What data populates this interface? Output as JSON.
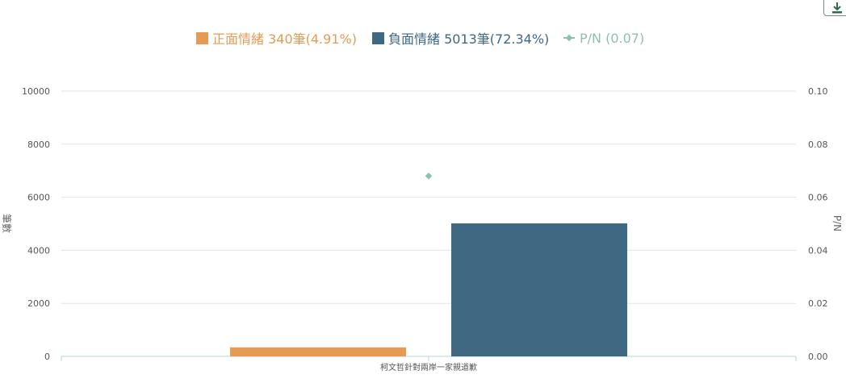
{
  "toolbar": {
    "download_icon": "download-icon"
  },
  "legend": [
    {
      "label": "正面情緒 340筆(4.91%)",
      "color": "#E59B55",
      "kind": "bar"
    },
    {
      "label": "負面情緒 5013筆(72.34%)",
      "color": "#3F6882",
      "kind": "bar"
    },
    {
      "label": "P/N (0.07)",
      "color": "#8FBFB0",
      "kind": "line"
    }
  ],
  "chart_data": {
    "type": "bar",
    "categories": [
      "柯文哲針對兩岸一家親道歉"
    ],
    "series": [
      {
        "name": "正面情緒",
        "values": [
          340
        ],
        "color": "#E59B55",
        "axis": "left"
      },
      {
        "name": "負面情緒",
        "values": [
          5013
        ],
        "color": "#3F6882",
        "axis": "left"
      },
      {
        "name": "P/N",
        "values": [
          0.068
        ],
        "color": "#8FBFB0",
        "axis": "right",
        "kind": "point"
      }
    ],
    "ylabel": "筆數",
    "y2label": "P/N",
    "ylim": [
      0,
      10000
    ],
    "y2lim": [
      0,
      0.1
    ],
    "yticks": [
      "0",
      "2000",
      "4000",
      "6000",
      "8000",
      "10000"
    ],
    "y2ticks": [
      "0.00",
      "0.02",
      "0.04",
      "0.06",
      "0.08",
      "0.10"
    ],
    "grid": true,
    "legend_position": "top-center"
  }
}
